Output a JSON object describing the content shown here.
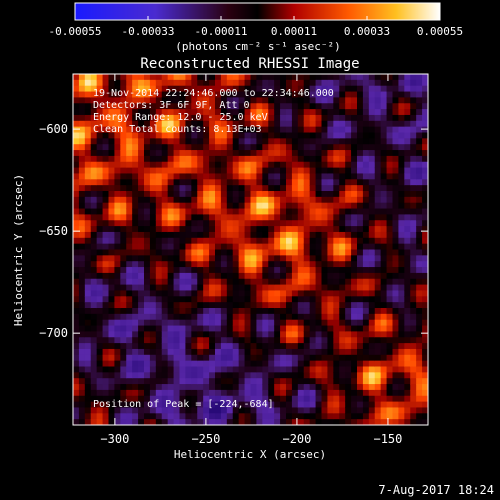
{
  "colorbar": {
    "ticks": [
      -0.00055,
      -0.00033,
      -0.00011,
      0.00011,
      0.00033,
      0.00055
    ],
    "tick_labels": [
      "-0.00055",
      "-0.00033",
      "-0.00011",
      "0.00011",
      "0.00033",
      "0.00055"
    ],
    "unit_label": "(photons cm⁻² s⁻¹ asec⁻²)",
    "range": [
      -0.00055,
      0.00055
    ]
  },
  "annotations": [
    "19-Nov-2014 22:24:46.000 to 22:34:46.000",
    "Detectors: 3F 6F 9F, Att 0",
    "Energy Range: 12.0 - 25.0 keV",
    "Clean     Total counts: 8.13E+03"
  ],
  "peak_label": "Position of Peak = [-224,-684]",
  "timestamp": "7-Aug-2017 18:24",
  "chart_data": {
    "type": "heatmap",
    "title": "Reconstructed RHESSI Image",
    "xlabel": "Heliocentric X (arcsec)",
    "ylabel": "Heliocentric Y (arcsec)",
    "xlim": [
      -323,
      -128
    ],
    "ylim": [
      -745,
      -573
    ],
    "xticks": [
      -300,
      -250,
      -200,
      -150
    ],
    "yticks": [
      -700,
      -650,
      -600
    ],
    "colormap": "red-temperature",
    "grid": false,
    "peak_position": [
      -224,
      -684
    ]
  }
}
